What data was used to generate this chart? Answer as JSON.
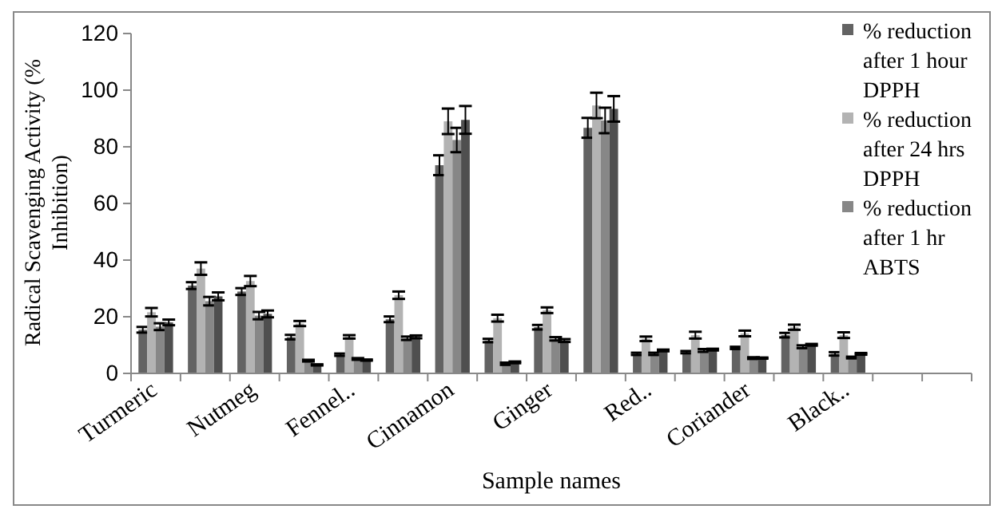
{
  "chart_data": {
    "type": "bar",
    "xlabel": "Sample names",
    "ylabel": "Radical Scavenging Activity (% Inhibition)",
    "categories": [
      "Turmeric",
      null,
      "Nutmeg",
      null,
      "Fennel..",
      null,
      "Cinnamon",
      null,
      "Ginger",
      null,
      "Red..",
      null,
      "Coriander",
      null,
      "Black..",
      null,
      null
    ],
    "ylim": [
      0,
      120
    ],
    "yticks": [
      0,
      20,
      40,
      60,
      80,
      100,
      120
    ],
    "grid": false,
    "legend": "right",
    "series": [
      {
        "name": "% reduction after 1 hour DPPH",
        "color": "#636363",
        "values": [
          15.4,
          31,
          28.9,
          12.8,
          6.6,
          19.1,
          73.5,
          11.6,
          16.3,
          86.7,
          6.9,
          7.5,
          9,
          13.5,
          6.9,
          null,
          null
        ],
        "errors": [
          1,
          1.2,
          1.2,
          0.8,
          0.4,
          1,
          3.5,
          0.6,
          0.8,
          3.5,
          0.4,
          0.4,
          0.4,
          0.8,
          0.6,
          null,
          null
        ]
      },
      {
        "name": "% reduction after 24 hrs DPPH",
        "color": "#b3b3b3",
        "values": [
          21.6,
          37,
          32.6,
          17.6,
          12.9,
          27.6,
          89,
          19.5,
          22.3,
          94.6,
          12.2,
          13.5,
          14.1,
          16.3,
          13.5,
          null,
          null
        ],
        "errors": [
          1.5,
          2.2,
          1.8,
          0.9,
          0.6,
          1.3,
          4.5,
          1.2,
          1,
          4.5,
          0.8,
          1.2,
          1,
          0.9,
          1,
          null,
          null
        ]
      },
      {
        "name": "% reduction after 1 hr ABTS",
        "color": "#878787",
        "values": [
          16.5,
          25.5,
          20.4,
          4.5,
          5.1,
          12.4,
          82.4,
          3.4,
          12.2,
          89.3,
          6.9,
          8.1,
          5.4,
          9.4,
          5.6,
          null,
          null
        ],
        "errors": [
          1.2,
          1.5,
          1.3,
          0.3,
          0.3,
          0.6,
          4.3,
          0.4,
          0.6,
          4.5,
          0.4,
          0.5,
          0.3,
          0.5,
          0.3,
          null,
          null
        ]
      },
      {
        "color": "#4f4f4f",
        "values": [
          18,
          27.2,
          21,
          3,
          4.7,
          12.9,
          89.5,
          3.9,
          11.6,
          93.4,
          8.1,
          8.4,
          5.4,
          10.1,
          6.9,
          null,
          null
        ],
        "errors": [
          1,
          1.4,
          1.2,
          0.2,
          0.2,
          0.5,
          4.9,
          0.3,
          0.5,
          4.5,
          0.3,
          0.3,
          0.2,
          0.3,
          0.3,
          null,
          null
        ]
      }
    ]
  }
}
